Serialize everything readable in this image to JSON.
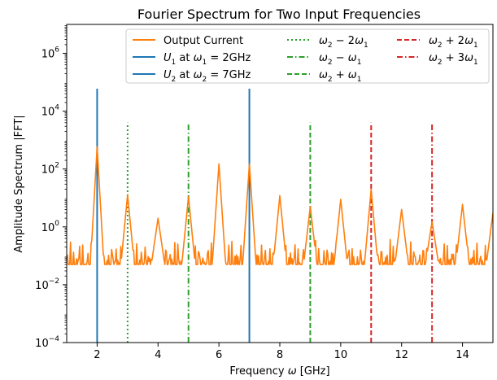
{
  "chart_data": {
    "type": "line",
    "title": "Fourier Spectrum for Two Input Frequencies",
    "xlabel": "Frequency ω [GHz]",
    "ylabel": "Amplitude Spectrum |FFT|",
    "xlim": [
      1,
      15
    ],
    "ylim": [
      0.0001,
      10000000
    ],
    "yscale": "log",
    "grid": false,
    "legend_position": "top-right",
    "x_ticks": [
      {
        "value": 2,
        "label": "2"
      },
      {
        "value": 4,
        "label": "4"
      },
      {
        "value": 6,
        "label": "6"
      },
      {
        "value": 8,
        "label": "8"
      },
      {
        "value": 10,
        "label": "10"
      },
      {
        "value": 12,
        "label": "12"
      },
      {
        "value": 14,
        "label": "14"
      }
    ],
    "y_ticks": [
      {
        "value": 0.0001,
        "base": "10",
        "exp": "−4"
      },
      {
        "value": 0.01,
        "base": "10",
        "exp": "−2"
      },
      {
        "value": 1,
        "base": "10",
        "exp": "0"
      },
      {
        "value": 100,
        "base": "10",
        "exp": "2"
      },
      {
        "value": 10000,
        "base": "10",
        "exp": "4"
      },
      {
        "value": 1000000,
        "base": "10",
        "exp": "6"
      }
    ],
    "output_series": {
      "name": "Output Current",
      "color": "#ff7f0e",
      "baseline": 0.05,
      "peaks": [
        {
          "x": 2,
          "y": 600
        },
        {
          "x": 3,
          "y": 13
        },
        {
          "x": 4,
          "y": 2
        },
        {
          "x": 5,
          "y": 11
        },
        {
          "x": 6,
          "y": 150
        },
        {
          "x": 7,
          "y": 150
        },
        {
          "x": 8,
          "y": 12
        },
        {
          "x": 9,
          "y": 5
        },
        {
          "x": 10,
          "y": 9
        },
        {
          "x": 11,
          "y": 20
        },
        {
          "x": 12,
          "y": 4
        },
        {
          "x": 13,
          "y": 1.5
        },
        {
          "x": 14,
          "y": 6
        },
        {
          "x": 15,
          "y": 3
        }
      ]
    },
    "vertical_lines": [
      {
        "id": "u1",
        "x": 2,
        "ymax": 60000,
        "style": "solid",
        "color": "#1f77b4"
      },
      {
        "id": "u2",
        "x": 7,
        "ymax": 60000,
        "style": "solid",
        "color": "#1f77b4"
      },
      {
        "id": "w2m2w1",
        "x": 3,
        "ymax": 4000,
        "style": "dotted",
        "color": "#2ca02c"
      },
      {
        "id": "w2mw1",
        "x": 5,
        "ymax": 4000,
        "style": "dashdot",
        "color": "#2ca02c"
      },
      {
        "id": "w2pw1",
        "x": 9,
        "ymax": 4000,
        "style": "dashed",
        "color": "#2ca02c"
      },
      {
        "id": "w2p2w1",
        "x": 11,
        "ymax": 4000,
        "style": "dashed",
        "color": "#d62728"
      },
      {
        "id": "w2p3w1",
        "x": 13,
        "ymax": 4000,
        "style": "dashdot",
        "color": "#d62728"
      }
    ],
    "legend": {
      "items": [
        {
          "label": "Output Current",
          "color": "#ff7f0e",
          "style": "solid"
        },
        {
          "label": "U1 at ω1 = 2GHz",
          "color": "#1f77b4",
          "style": "solid"
        },
        {
          "label": "U2 at ω2 = 7GHz",
          "color": "#1f77b4",
          "style": "solid"
        },
        {
          "label": "ω2 − 2ω1",
          "color": "#2ca02c",
          "style": "dotted"
        },
        {
          "label": "ω2 − ω1",
          "color": "#2ca02c",
          "style": "dashdot"
        },
        {
          "label": "ω2 + ω1",
          "color": "#2ca02c",
          "style": "dashed"
        },
        {
          "label": "ω2 + 2ω1",
          "color": "#d62728",
          "style": "dashed"
        },
        {
          "label": "ω2 + 3ω1",
          "color": "#d62728",
          "style": "dashdot"
        }
      ]
    }
  }
}
